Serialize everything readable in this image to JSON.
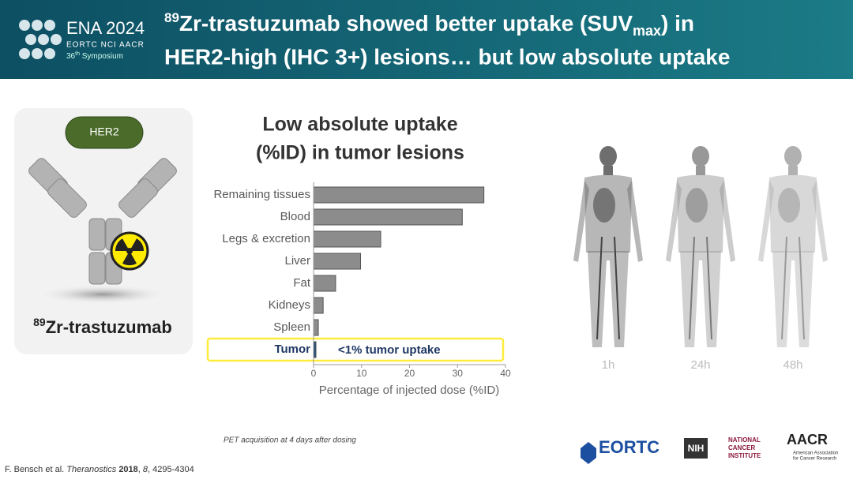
{
  "header": {
    "logo_title": "ENA 2024",
    "logo_org": "EORTC NCI AACR",
    "logo_sym_num": "36",
    "logo_sym_sup": "th",
    "logo_sym_text": " Symposium",
    "title_sup": "89",
    "title_a": "Zr-trastuzumab showed better uptake (SUV",
    "title_sub": "max",
    "title_b": ") in",
    "title_line2": "HER2-high (IHC 3+) lesions… but low absolute uptake"
  },
  "sidebar": {
    "badge": "HER2",
    "label_sup": "89",
    "label": "Zr-trastuzumab"
  },
  "chart_data": {
    "type": "hbar",
    "title": [
      "Low absolute uptake",
      "(%ID) in tumor lesions"
    ],
    "categories": [
      "Remaining tissues",
      "Blood",
      "Legs & excretion",
      "Liver",
      "Fat",
      "Kidneys",
      "Spleen",
      "Tumor"
    ],
    "values": [
      35.5,
      31,
      14,
      9.8,
      4.6,
      2,
      1,
      0.5
    ],
    "colors": [
      "#8c8c8c",
      "#8c8c8c",
      "#8c8c8c",
      "#8c8c8c",
      "#8c8c8c",
      "#8c8c8c",
      "#8c8c8c",
      "#1f4e79"
    ],
    "annotation": "<1% tumor uptake",
    "xlim": [
      0,
      40
    ],
    "xticks": [
      0,
      10,
      20,
      30,
      40
    ],
    "xlabel": "Percentage of injected dose (%ID)"
  },
  "images": {
    "labels": [
      "1h",
      "24h",
      "48h"
    ]
  },
  "footer": {
    "note": "PET acquisition at 4 days after dosing",
    "cite_a": "F. Bensch et al. ",
    "cite_journal": "Theranostics",
    "cite_year": "2018",
    "cite_vol": "8",
    "cite_pages": ", 4295-4304",
    "cite_sep": ", ",
    "logo_eortc": "EORTC",
    "logo_nih": "NIH",
    "logo_nci": [
      "NATIONAL",
      "CANCER",
      "INSTITUTE"
    ],
    "logo_aacr": "AACR",
    "logo_aacr_sub": [
      "American Association",
      "for Cancer Research"
    ]
  }
}
